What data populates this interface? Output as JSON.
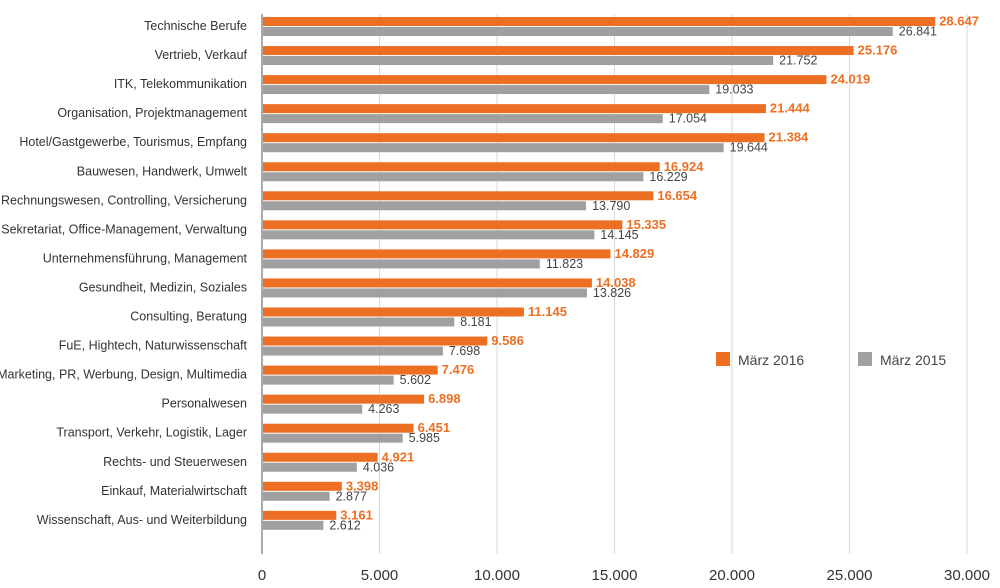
{
  "chart_data": {
    "type": "bar",
    "orientation": "horizontal",
    "title": "",
    "xlabel": "",
    "ylabel": "",
    "categories": [
      "Technische Berufe",
      "Vertrieb, Verkauf",
      "ITK, Telekommunikation",
      "Organisation, Projektmanagement",
      "Hotel/Gastgewerbe, Tourismus, Empfang",
      "Bauwesen, Handwerk, Umwelt",
      "Finanz-, Rechnungswesen, Controlling, Versicherung",
      "Sekretariat, Office-Management, Verwaltung",
      "Unternehmensführung, Management",
      "Gesundheit, Medizin, Soziales",
      "Consulting, Beratung",
      "FuE, Hightech, Naturwissenschaft",
      "Marketing, PR, Werbung, Design, Multimedia",
      "Personalwesen",
      "Transport, Verkehr, Logistik, Lager",
      "Rechts- und Steuerwesen",
      "Einkauf, Materialwirtschaft",
      "Wissenschaft, Aus- und Weiterbildung"
    ],
    "series": [
      {
        "name": "März 2016",
        "color": "#ed6f23",
        "values": [
          28647,
          25176,
          24019,
          21444,
          21384,
          16924,
          16654,
          15335,
          14829,
          14038,
          11145,
          9586,
          7476,
          6898,
          6451,
          4921,
          3398,
          3161
        ],
        "labels": [
          "28.647",
          "25.176",
          "24.019",
          "21.444",
          "21.384",
          "16.924",
          "16.654",
          "15.335",
          "14.829",
          "14.038",
          "11.145",
          "9.586",
          "7.476",
          "6.898",
          "6.451",
          "4.921",
          "3.398",
          "3.161"
        ]
      },
      {
        "name": "März 2015",
        "color": "#a0a0a0",
        "values": [
          26841,
          21752,
          19033,
          17054,
          19644,
          16229,
          13790,
          14145,
          11823,
          13826,
          8181,
          7698,
          5602,
          4263,
          5985,
          4036,
          2877,
          2612
        ],
        "labels": [
          "26.841",
          "21.752",
          "19.033",
          "17.054",
          "19.644",
          "16.229",
          "13.790",
          "14.145",
          "11.823",
          "13.826",
          "8.181",
          "7.698",
          "5.602",
          "4.263",
          "5.985",
          "4.036",
          "2.877",
          "2.612"
        ]
      }
    ],
    "xlim": [
      0,
      30000
    ],
    "xticks": [
      0,
      5000,
      10000,
      15000,
      20000,
      25000,
      30000
    ],
    "xtick_labels": [
      "0",
      "5.000",
      "10.000",
      "15.000",
      "20.000",
      "25.000",
      "30.000"
    ],
    "grid": "vertical",
    "grid_color": "#d9d9d9",
    "legend": "right"
  }
}
